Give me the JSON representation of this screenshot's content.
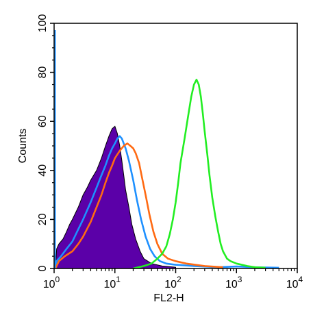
{
  "chart_data": {
    "type": "area",
    "title": "",
    "xlabel": "FL2-H",
    "ylabel": "Counts",
    "xscale": "log",
    "xlim": [
      1,
      10000
    ],
    "ylim": [
      0,
      100
    ],
    "x_ticks": [
      {
        "value": 1,
        "base": "10",
        "exp": "0"
      },
      {
        "value": 10,
        "base": "10",
        "exp": "1"
      },
      {
        "value": 100,
        "base": "10",
        "exp": "2"
      },
      {
        "value": 1000,
        "base": "10",
        "exp": "3"
      },
      {
        "value": 10000,
        "base": "10",
        "exp": "4"
      }
    ],
    "y_ticks": [
      "0",
      "20",
      "40",
      "60",
      "80",
      "100"
    ],
    "grid": false,
    "legend": "none",
    "series": [
      {
        "color": "#5b00a8",
        "style": "filled",
        "points": [
          [
            1.05,
            0
          ],
          [
            1.1,
            8
          ],
          [
            1.2,
            10
          ],
          [
            1.4,
            12
          ],
          [
            1.6,
            15
          ],
          [
            1.8,
            18
          ],
          [
            2,
            20
          ],
          [
            2.5,
            25
          ],
          [
            3,
            30
          ],
          [
            3.5,
            33
          ],
          [
            4,
            36
          ],
          [
            5,
            40
          ],
          [
            6,
            45
          ],
          [
            7,
            50
          ],
          [
            8,
            54
          ],
          [
            9,
            57
          ],
          [
            10,
            58
          ],
          [
            11,
            55
          ],
          [
            12,
            50
          ],
          [
            13,
            44
          ],
          [
            14,
            38
          ],
          [
            15,
            32
          ],
          [
            17,
            25
          ],
          [
            19,
            18
          ],
          [
            22,
            12
          ],
          [
            26,
            7
          ],
          [
            30,
            4
          ],
          [
            40,
            2
          ],
          [
            60,
            1
          ],
          [
            100,
            0.5
          ]
        ]
      },
      {
        "color": "#1e90ff",
        "style": "line",
        "points": [
          [
            1.05,
            0
          ],
          [
            1.1,
            3
          ],
          [
            1.3,
            5
          ],
          [
            1.6,
            8
          ],
          [
            2,
            11
          ],
          [
            2.5,
            16
          ],
          [
            3,
            20
          ],
          [
            4,
            27
          ],
          [
            5,
            33
          ],
          [
            6,
            38
          ],
          [
            7,
            42
          ],
          [
            8,
            46
          ],
          [
            9,
            49
          ],
          [
            10,
            51
          ],
          [
            11,
            53
          ],
          [
            12,
            54
          ],
          [
            13,
            53
          ],
          [
            15,
            49
          ],
          [
            17,
            44
          ],
          [
            20,
            36
          ],
          [
            23,
            28
          ],
          [
            27,
            20
          ],
          [
            32,
            13
          ],
          [
            38,
            8
          ],
          [
            45,
            5
          ],
          [
            55,
            3
          ],
          [
            70,
            2
          ],
          [
            100,
            1.5
          ],
          [
            200,
            1
          ],
          [
            500,
            0.5
          ],
          [
            1000,
            0.8
          ],
          [
            2000,
            0.5
          ],
          [
            5000,
            0.3
          ]
        ]
      },
      {
        "color": "#ff6a13",
        "style": "line",
        "points": [
          [
            1.05,
            0
          ],
          [
            1.2,
            3
          ],
          [
            1.5,
            5
          ],
          [
            2,
            7
          ],
          [
            2.5,
            10
          ],
          [
            3,
            13
          ],
          [
            4,
            19
          ],
          [
            5,
            25
          ],
          [
            6,
            30
          ],
          [
            7,
            35
          ],
          [
            8,
            39
          ],
          [
            9,
            42
          ],
          [
            10,
            45
          ],
          [
            12,
            48
          ],
          [
            14,
            50
          ],
          [
            16,
            51
          ],
          [
            18,
            50
          ],
          [
            20,
            49
          ],
          [
            22,
            47
          ],
          [
            25,
            43
          ],
          [
            28,
            37
          ],
          [
            32,
            30
          ],
          [
            37,
            22
          ],
          [
            43,
            15
          ],
          [
            50,
            10
          ],
          [
            60,
            6
          ],
          [
            75,
            4
          ],
          [
            100,
            3
          ],
          [
            150,
            2
          ],
          [
            300,
            1
          ],
          [
            600,
            0.5
          ]
        ]
      },
      {
        "color": "#22ee22",
        "style": "line",
        "points": [
          [
            20,
            0
          ],
          [
            30,
            1
          ],
          [
            40,
            2
          ],
          [
            50,
            4
          ],
          [
            60,
            6
          ],
          [
            70,
            9
          ],
          [
            80,
            14
          ],
          [
            90,
            20
          ],
          [
            100,
            27
          ],
          [
            110,
            35
          ],
          [
            120,
            43
          ],
          [
            140,
            53
          ],
          [
            160,
            62
          ],
          [
            180,
            70
          ],
          [
            200,
            75
          ],
          [
            220,
            77
          ],
          [
            240,
            75
          ],
          [
            260,
            70
          ],
          [
            280,
            63
          ],
          [
            300,
            56
          ],
          [
            330,
            47
          ],
          [
            360,
            38
          ],
          [
            400,
            29
          ],
          [
            450,
            21
          ],
          [
            500,
            15
          ],
          [
            550,
            10
          ],
          [
            600,
            7
          ],
          [
            700,
            4
          ],
          [
            800,
            3
          ],
          [
            1000,
            2
          ],
          [
            1500,
            1
          ],
          [
            2000,
            0.5
          ],
          [
            3000,
            0.3
          ]
        ]
      }
    ]
  }
}
